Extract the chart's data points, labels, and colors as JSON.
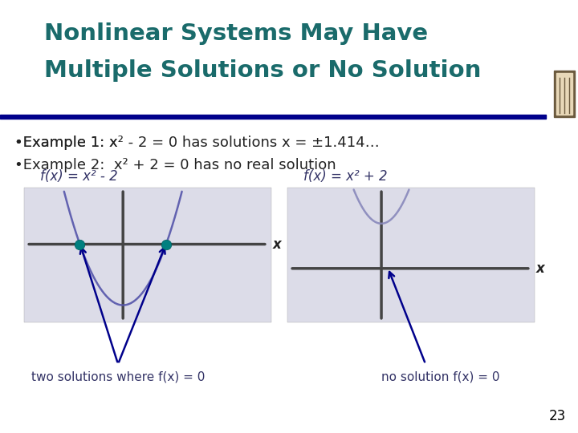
{
  "title_line1": "Nonlinear Systems May Have",
  "title_line2": "Multiple Solutions or No Solution",
  "title_color": "#1a6b6b",
  "header_bar_color": "#00008b",
  "bullet1_prefix": "•Example 1: x",
  "bullet1_sup": "2",
  "bullet1_suffix": " - 2 = 0 has solutions x = ±1.414…",
  "bullet2_prefix": "•Example 2:  x",
  "bullet2_sup": "2",
  "bullet2_suffix": " + 2 = 0 has no real solution",
  "bullet_color": "#222222",
  "label1": "f(x) = x² - 2",
  "label2": "f(x) = x² + 2",
  "caption1": "two solutions where f(x) = 0",
  "caption2": "no solution f(x) = 0",
  "page_num": "23",
  "bg_color": "#ffffff",
  "panel_bg": "#dcdce8",
  "parabola1_color": "#5555aa",
  "parabola2_color": "#8888bb",
  "axis_color": "#444444",
  "dot_color": "#008080",
  "arrow_color": "#00008b",
  "label_color": "#333366",
  "caption_color": "#333366",
  "deco_outer": "#6b5a3e",
  "deco_inner": "#b09060"
}
